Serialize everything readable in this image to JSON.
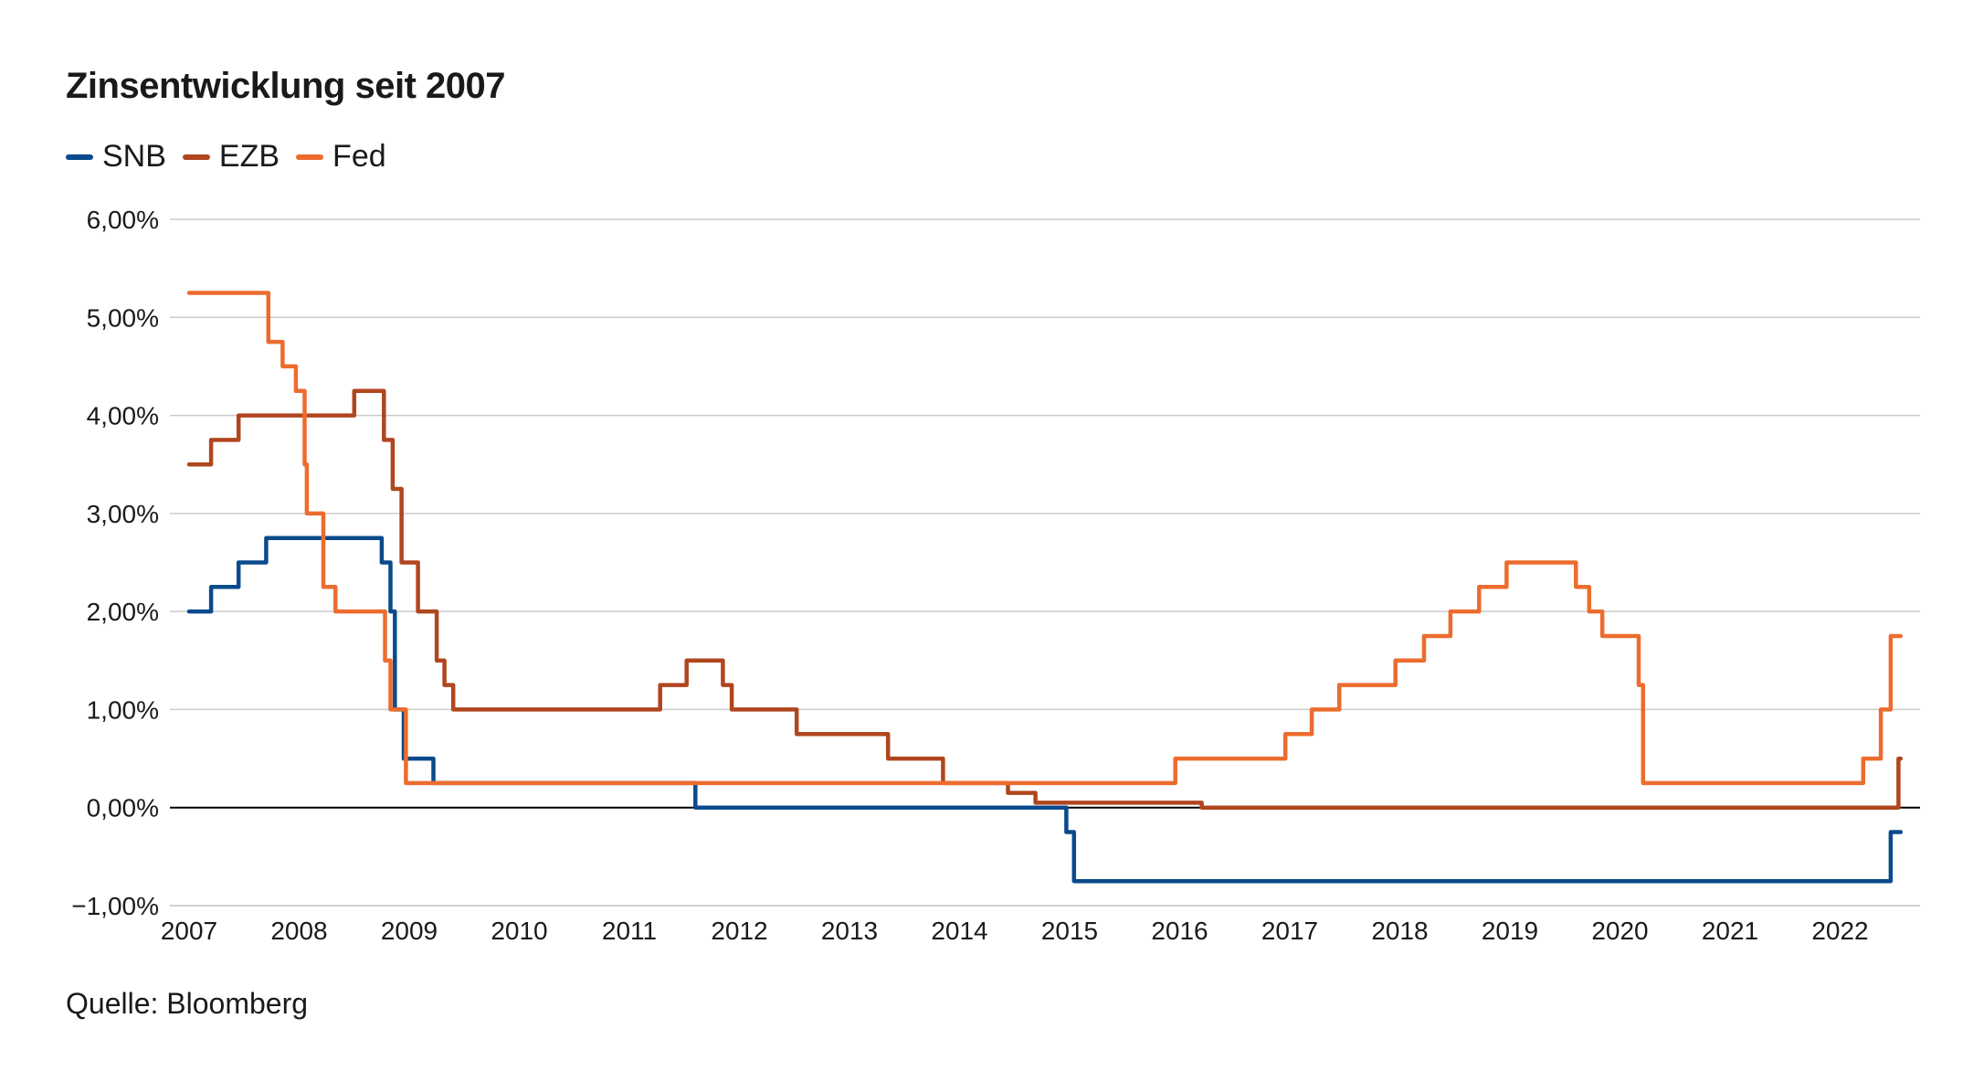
{
  "title": "Zinsentwicklung seit 2007",
  "source": "Quelle: Bloomberg",
  "colors": {
    "SNB": "#0a4a8c",
    "EZB": "#b0461e",
    "Fed": "#ec6c2e",
    "grid": "#cccccc",
    "zero": "#000000"
  },
  "chart_data": {
    "type": "line",
    "step": true,
    "title": "Zinsentwicklung seit 2007",
    "xlabel": "",
    "ylabel": "",
    "xlim": [
      2007.0,
      2022.6
    ],
    "ylim": [
      -1.0,
      6.0
    ],
    "x_ticks": [
      "2007",
      "2008",
      "2009",
      "2010",
      "2011",
      "2012",
      "2013",
      "2014",
      "2015",
      "2016",
      "2017",
      "2018",
      "2019",
      "2020",
      "2021",
      "2022"
    ],
    "y_ticks": [
      "−1,00%",
      "0,00%",
      "1,00%",
      "2,00%",
      "3,00%",
      "4,00%",
      "5,00%",
      "6,00%"
    ],
    "y_tick_values": [
      -1,
      0,
      1,
      2,
      3,
      4,
      5,
      6
    ],
    "grid": true,
    "legend": "top-left",
    "series": [
      {
        "name": "SNB",
        "points": [
          [
            2007.0,
            2.0
          ],
          [
            2007.2,
            2.25
          ],
          [
            2007.45,
            2.5
          ],
          [
            2007.7,
            2.75
          ],
          [
            2008.75,
            2.5
          ],
          [
            2008.83,
            2.0
          ],
          [
            2008.87,
            1.0
          ],
          [
            2008.95,
            0.5
          ],
          [
            2009.22,
            0.25
          ],
          [
            2011.6,
            0.0
          ],
          [
            2014.97,
            -0.25
          ],
          [
            2015.04,
            -0.75
          ],
          [
            2022.46,
            -0.25
          ],
          [
            2022.55,
            -0.25
          ]
        ]
      },
      {
        "name": "EZB",
        "points": [
          [
            2007.0,
            3.5
          ],
          [
            2007.2,
            3.75
          ],
          [
            2007.45,
            4.0
          ],
          [
            2008.5,
            4.25
          ],
          [
            2008.77,
            3.75
          ],
          [
            2008.85,
            3.25
          ],
          [
            2008.93,
            2.5
          ],
          [
            2009.08,
            2.0
          ],
          [
            2009.25,
            1.5
          ],
          [
            2009.32,
            1.25
          ],
          [
            2009.4,
            1.0
          ],
          [
            2011.28,
            1.25
          ],
          [
            2011.52,
            1.5
          ],
          [
            2011.85,
            1.25
          ],
          [
            2011.93,
            1.0
          ],
          [
            2012.52,
            0.75
          ],
          [
            2013.35,
            0.5
          ],
          [
            2013.85,
            0.25
          ],
          [
            2014.44,
            0.15
          ],
          [
            2014.69,
            0.05
          ],
          [
            2016.2,
            0.0
          ],
          [
            2022.53,
            0.5
          ],
          [
            2022.55,
            0.5
          ]
        ]
      },
      {
        "name": "Fed",
        "points": [
          [
            2007.0,
            5.25
          ],
          [
            2007.72,
            4.75
          ],
          [
            2007.85,
            4.5
          ],
          [
            2007.97,
            4.25
          ],
          [
            2008.05,
            3.5
          ],
          [
            2008.07,
            3.0
          ],
          [
            2008.22,
            2.25
          ],
          [
            2008.33,
            2.0
          ],
          [
            2008.78,
            1.5
          ],
          [
            2008.83,
            1.0
          ],
          [
            2008.97,
            0.25
          ],
          [
            2015.96,
            0.5
          ],
          [
            2016.96,
            0.75
          ],
          [
            2017.2,
            1.0
          ],
          [
            2017.45,
            1.25
          ],
          [
            2017.96,
            1.5
          ],
          [
            2018.22,
            1.75
          ],
          [
            2018.46,
            2.0
          ],
          [
            2018.72,
            2.25
          ],
          [
            2018.97,
            2.5
          ],
          [
            2019.6,
            2.25
          ],
          [
            2019.72,
            2.0
          ],
          [
            2019.84,
            1.75
          ],
          [
            2020.17,
            1.25
          ],
          [
            2020.21,
            0.25
          ],
          [
            2022.21,
            0.5
          ],
          [
            2022.37,
            1.0
          ],
          [
            2022.46,
            1.75
          ],
          [
            2022.55,
            1.75
          ]
        ]
      }
    ]
  }
}
